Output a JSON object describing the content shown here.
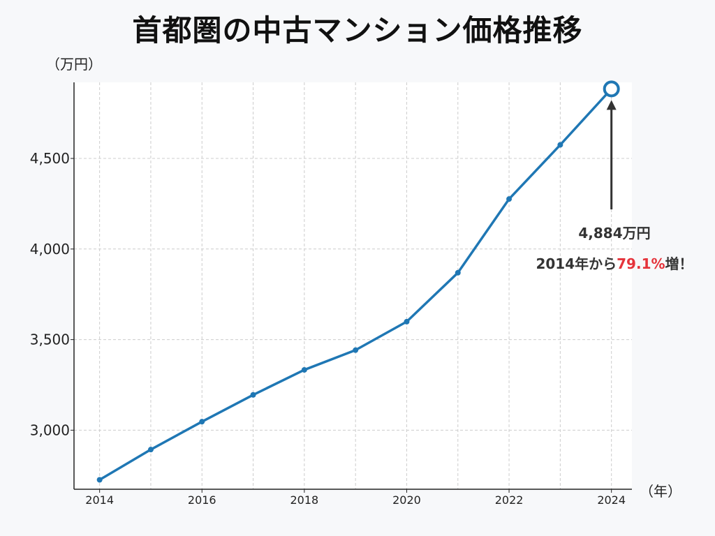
{
  "title": "首都圏の中古マンション価格推移",
  "y_unit": "（万円）",
  "x_unit": "（年）",
  "annotation": {
    "value_label": "4,884万円",
    "growth_prefix": "2014年から",
    "growth_pct": "79.1%",
    "growth_suffix": "増！"
  },
  "colors": {
    "line": "#1f77b4",
    "highlight_pct": "#e5333b",
    "arrow": "#333333",
    "grid": "#cccccc",
    "plot_bg": "#ffffff",
    "page_bg": "#f7f8fa"
  },
  "chart_data": {
    "type": "line",
    "title": "首都圏の中古マンション価格推移",
    "xlabel": "（年）",
    "ylabel": "（万円）",
    "x": [
      2014,
      2015,
      2016,
      2017,
      2018,
      2019,
      2020,
      2021,
      2022,
      2023,
      2024
    ],
    "series": [
      {
        "values": [
          2726,
          2893,
          3047,
          3195,
          3333,
          3442,
          3599,
          3869,
          4276,
          4575,
          4884
        ]
      }
    ],
    "xlim": [
      2013.5,
      2024.4
    ],
    "ylim": [
      2674,
      4920
    ],
    "yticks": [
      3000,
      3500,
      4000,
      4500
    ],
    "ytick_labels": [
      "3,000",
      "3,500",
      "4,000",
      "4,500"
    ],
    "xticks": [
      2014,
      2016,
      2018,
      2020,
      2022,
      2024
    ],
    "xtick_labels": [
      "2014",
      "2016",
      "2018",
      "2020",
      "2022",
      "2024"
    ],
    "grid": true,
    "highlight_last_point": true
  }
}
